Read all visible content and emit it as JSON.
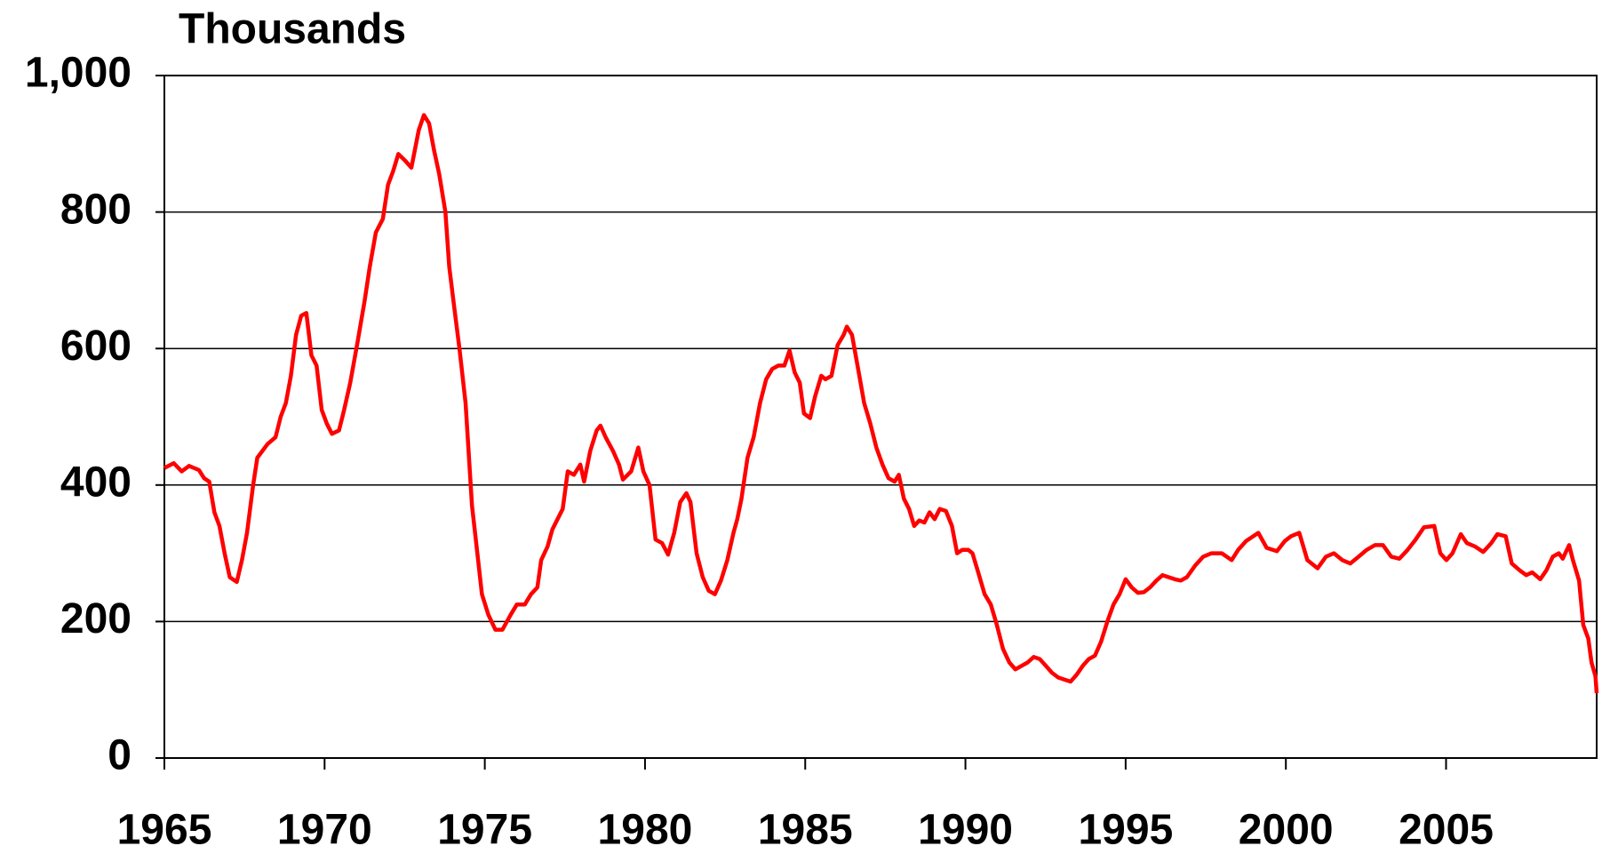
{
  "chart_data": {
    "type": "line",
    "y_axis_label": "Thousands",
    "xlim": [
      1965,
      2009.7
    ],
    "ylim": [
      0,
      1000
    ],
    "xticks": [
      1965,
      1970,
      1975,
      1980,
      1985,
      1990,
      1995,
      2000,
      2005
    ],
    "yticks": [
      0,
      200,
      400,
      600,
      800,
      {
        "value": 1000,
        "label": "1,000"
      }
    ],
    "grid": true,
    "series": [
      {
        "color": "#ff0000",
        "x": [
          1965.0,
          1965.29,
          1965.54,
          1965.77,
          1966.08,
          1966.24,
          1966.4,
          1966.56,
          1966.72,
          1966.88,
          1967.04,
          1967.26,
          1967.42,
          1967.58,
          1967.77,
          1967.9,
          1968.22,
          1968.47,
          1968.63,
          1968.79,
          1968.95,
          1969.11,
          1969.27,
          1969.43,
          1969.59,
          1969.75,
          1969.91,
          1970.07,
          1970.23,
          1970.45,
          1970.61,
          1970.8,
          1971.03,
          1971.25,
          1971.41,
          1971.6,
          1971.82,
          1971.98,
          1972.14,
          1972.3,
          1972.52,
          1972.71,
          1972.94,
          1973.1,
          1973.26,
          1973.42,
          1973.58,
          1973.77,
          1973.89,
          1974.02,
          1974.21,
          1974.4,
          1974.6,
          1974.79,
          1974.91,
          1975.11,
          1975.33,
          1975.55,
          1975.81,
          1976.0,
          1976.25,
          1976.44,
          1976.64,
          1976.76,
          1976.96,
          1977.11,
          1977.27,
          1977.43,
          1977.59,
          1977.78,
          1977.98,
          1978.1,
          1978.29,
          1978.49,
          1978.61,
          1978.77,
          1979.0,
          1979.19,
          1979.31,
          1979.57,
          1979.79,
          1979.95,
          1980.14,
          1980.33,
          1980.53,
          1980.72,
          1980.91,
          1981.1,
          1981.29,
          1981.42,
          1981.61,
          1981.8,
          1981.99,
          1982.18,
          1982.37,
          1982.57,
          1982.76,
          1982.88,
          1983.01,
          1983.2,
          1983.39,
          1983.59,
          1983.78,
          1983.97,
          1984.16,
          1984.35,
          1984.51,
          1984.67,
          1984.83,
          1984.96,
          1985.15,
          1985.31,
          1985.5,
          1985.63,
          1985.82,
          1986.01,
          1986.2,
          1986.3,
          1986.46,
          1986.65,
          1986.84,
          1987.03,
          1987.22,
          1987.41,
          1987.6,
          1987.79,
          1987.92,
          1988.08,
          1988.24,
          1988.4,
          1988.56,
          1988.72,
          1988.88,
          1989.04,
          1989.2,
          1989.39,
          1989.58,
          1989.74,
          1989.9,
          1990.09,
          1990.22,
          1990.41,
          1990.6,
          1990.79,
          1990.98,
          1991.17,
          1991.37,
          1991.56,
          1991.75,
          1991.94,
          1992.13,
          1992.32,
          1992.51,
          1992.7,
          1992.9,
          1993.09,
          1993.28,
          1993.47,
          1993.66,
          1993.85,
          1994.04,
          1994.23,
          1994.43,
          1994.62,
          1994.81,
          1995.0,
          1995.19,
          1995.38,
          1995.57,
          1995.76,
          1995.96,
          1996.15,
          1996.34,
          1996.53,
          1996.72,
          1996.91,
          1997.17,
          1997.42,
          1997.68,
          1998.0,
          1998.31,
          1998.51,
          1998.76,
          1999.14,
          1999.4,
          1999.72,
          1999.97,
          2000.16,
          2000.42,
          2000.67,
          2000.99,
          2001.25,
          2001.5,
          2001.76,
          2002.01,
          2002.27,
          2002.52,
          2002.78,
          2003.03,
          2003.29,
          2003.54,
          2003.8,
          2004.05,
          2004.31,
          2004.63,
          2004.82,
          2005.01,
          2005.2,
          2005.46,
          2005.65,
          2005.9,
          2006.16,
          2006.41,
          2006.6,
          2006.86,
          2007.05,
          2007.3,
          2007.5,
          2007.69,
          2007.94,
          2008.13,
          2008.33,
          2008.52,
          2008.64,
          2008.84,
          2008.96,
          2009.15,
          2009.28,
          2009.44,
          2009.54,
          2009.66,
          2009.7
        ],
        "values": [
          425,
          432,
          420,
          428,
          422,
          410,
          405,
          360,
          340,
          300,
          265,
          258,
          290,
          330,
          400,
          440,
          460,
          470,
          500,
          520,
          560,
          620,
          648,
          652,
          590,
          575,
          510,
          490,
          475,
          480,
          510,
          550,
          610,
          670,
          720,
          770,
          790,
          840,
          860,
          885,
          875,
          865,
          920,
          942,
          930,
          890,
          855,
          800,
          720,
          670,
          600,
          520,
          370,
          290,
          240,
          210,
          188,
          188,
          210,
          225,
          225,
          240,
          250,
          290,
          310,
          335,
          350,
          365,
          420,
          415,
          430,
          405,
          450,
          480,
          487,
          470,
          450,
          430,
          408,
          420,
          455,
          420,
          400,
          320,
          315,
          298,
          330,
          375,
          388,
          375,
          300,
          265,
          245,
          240,
          260,
          290,
          330,
          350,
          380,
          440,
          470,
          520,
          555,
          570,
          575,
          575,
          597,
          565,
          550,
          505,
          498,
          530,
          560,
          555,
          560,
          605,
          620,
          632,
          620,
          570,
          520,
          490,
          455,
          430,
          410,
          405,
          415,
          380,
          365,
          340,
          348,
          345,
          360,
          350,
          365,
          362,
          340,
          300,
          305,
          305,
          300,
          270,
          240,
          225,
          195,
          160,
          140,
          130,
          135,
          140,
          148,
          145,
          135,
          125,
          118,
          115,
          112,
          122,
          135,
          145,
          150,
          170,
          200,
          225,
          240,
          262,
          250,
          242,
          243,
          250,
          260,
          268,
          265,
          262,
          260,
          265,
          282,
          295,
          300,
          300,
          290,
          305,
          318,
          330,
          308,
          303,
          318,
          325,
          330,
          290,
          278,
          295,
          300,
          290,
          285,
          295,
          305,
          312,
          312,
          295,
          292,
          305,
          320,
          338,
          340,
          300,
          290,
          300,
          328,
          315,
          310,
          302,
          315,
          328,
          325,
          285,
          275,
          268,
          272,
          262,
          275,
          295,
          300,
          292,
          312,
          290,
          260,
          195,
          175,
          140,
          120,
          95
        ]
      }
    ]
  }
}
